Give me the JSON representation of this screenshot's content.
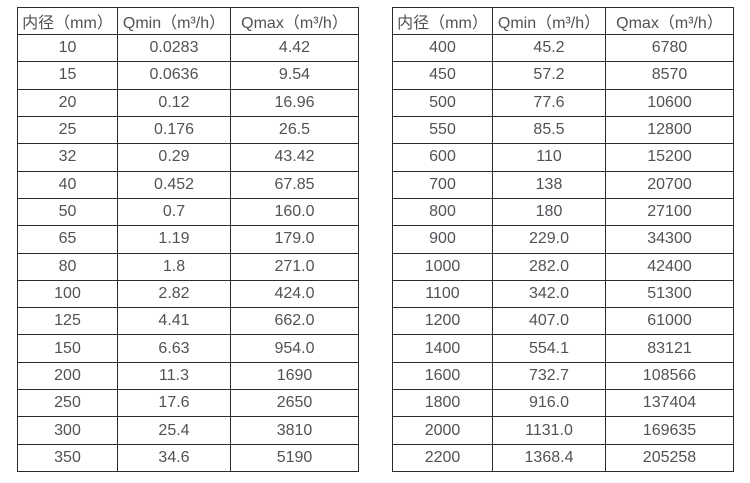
{
  "page": {
    "background": "#ffffff",
    "text_color": "#515257",
    "border_color": "#2b2b2b"
  },
  "chart_data": [
    {
      "type": "table",
      "title": "",
      "columns": [
        "内径（mm）",
        "Qmin（m³/h）",
        "Qmax（m³/h）"
      ],
      "rows": [
        [
          "10",
          "0.0283",
          "4.42"
        ],
        [
          "15",
          "0.0636",
          "9.54"
        ],
        [
          "20",
          "0.12",
          "16.96"
        ],
        [
          "25",
          "0.176",
          "26.5"
        ],
        [
          "32",
          "0.29",
          "43.42"
        ],
        [
          "40",
          "0.452",
          "67.85"
        ],
        [
          "50",
          "0.7",
          "160.0"
        ],
        [
          "65",
          "1.19",
          "179.0"
        ],
        [
          "80",
          "1.8",
          "271.0"
        ],
        [
          "100",
          "2.82",
          "424.0"
        ],
        [
          "125",
          "4.41",
          "662.0"
        ],
        [
          "150",
          "6.63",
          "954.0"
        ],
        [
          "200",
          "11.3",
          "1690"
        ],
        [
          "250",
          "17.6",
          "2650"
        ],
        [
          "300",
          "25.4",
          "3810"
        ],
        [
          "350",
          "34.6",
          "5190"
        ]
      ]
    },
    {
      "type": "table",
      "title": "",
      "columns": [
        "内径（mm）",
        "Qmin（m³/h）",
        "Qmax（m³/h）"
      ],
      "rows": [
        [
          "400",
          "45.2",
          "6780"
        ],
        [
          "450",
          "57.2",
          "8570"
        ],
        [
          "500",
          "77.6",
          "10600"
        ],
        [
          "550",
          "85.5",
          "12800"
        ],
        [
          "600",
          "110",
          "15200"
        ],
        [
          "700",
          "138",
          "20700"
        ],
        [
          "800",
          "180",
          "27100"
        ],
        [
          "900",
          "229.0",
          "34300"
        ],
        [
          "1000",
          "282.0",
          "42400"
        ],
        [
          "1100",
          "342.0",
          "51300"
        ],
        [
          "1200",
          "407.0",
          "61000"
        ],
        [
          "1400",
          "554.1",
          "83121"
        ],
        [
          "1600",
          "732.7",
          "108566"
        ],
        [
          "1800",
          "916.0",
          "137404"
        ],
        [
          "2000",
          "1131.0",
          "169635"
        ],
        [
          "2200",
          "1368.4",
          "205258"
        ]
      ]
    }
  ]
}
